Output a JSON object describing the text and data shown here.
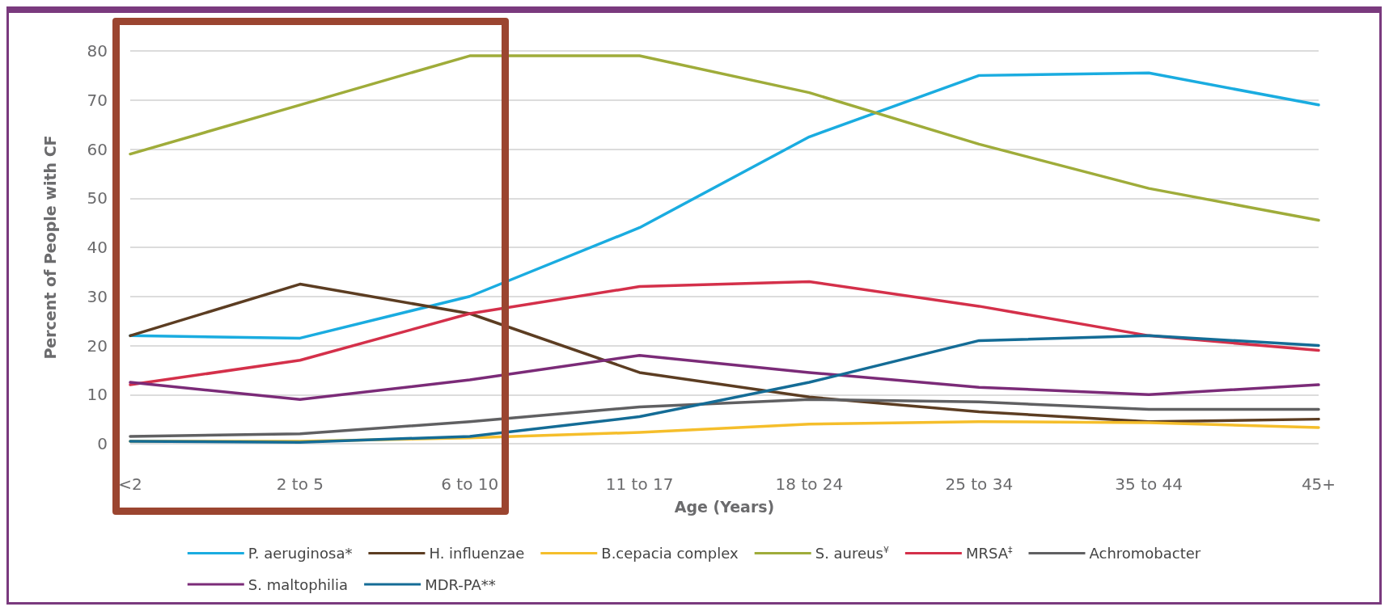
{
  "chart_data": {
    "type": "line",
    "xlabel": "Age (Years)",
    "ylabel": "Percent of People with CF",
    "categories": [
      "<2",
      "2 to 5",
      "6 to 10",
      "11 to 17",
      "18 to 24",
      "25 to 34",
      "35 to 44",
      "45+"
    ],
    "series": [
      {
        "name": "P. aeruginosa*",
        "color": "#1aace0",
        "values": [
          22,
          21.5,
          30,
          44,
          62.5,
          75,
          75.5,
          69
        ]
      },
      {
        "name": "H. influenzae",
        "color": "#5c3d22",
        "values": [
          22,
          32.5,
          26.5,
          14.5,
          9.5,
          6.5,
          4.5,
          5
        ]
      },
      {
        "name": "B.cepacia complex",
        "color": "#f5be2b",
        "values": [
          0.5,
          0.5,
          1.2,
          2.3,
          4,
          4.5,
          4.3,
          3.3
        ]
      },
      {
        "name": "S. aureus$^{¥}$",
        "color": "#9fac3a",
        "values": [
          59,
          69,
          79,
          79,
          71.5,
          61,
          52,
          45.5
        ]
      },
      {
        "name": "MRSA$^{‡}$",
        "color": "#d4304a",
        "values": [
          12,
          17,
          26.5,
          32,
          33,
          28,
          22,
          19
        ]
      },
      {
        "name": "Achromobacter",
        "color": "#606062",
        "values": [
          1.5,
          2,
          4.5,
          7.5,
          9,
          8.5,
          7,
          7
        ]
      },
      {
        "name": "S. maltophilia",
        "color": "#7b2b78",
        "values": [
          12.5,
          9,
          13,
          18,
          14.5,
          11.5,
          10,
          12
        ]
      },
      {
        "name": "MDR-PA**",
        "color": "#146c96",
        "values": [
          0.5,
          0.3,
          1.5,
          5.5,
          12.5,
          21,
          22,
          20
        ]
      }
    ],
    "ylim": [
      0,
      80
    ],
    "yticks": [
      0,
      10,
      20,
      30,
      40,
      50,
      60,
      70,
      80
    ],
    "grid": "y",
    "legend": "bottom",
    "marker": "none",
    "line_style": "solid"
  }
}
